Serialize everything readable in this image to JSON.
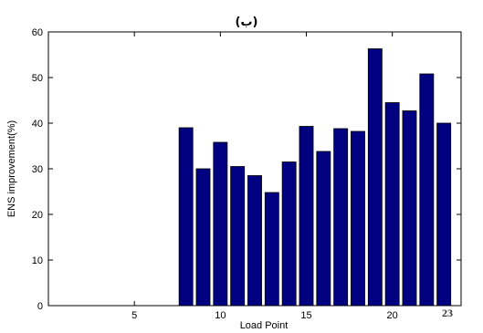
{
  "chart_data": {
    "type": "bar",
    "subtitle": "(ب)",
    "xlabel": "Load Point",
    "ylabel": "ENS improvement(%)",
    "xlim": [
      0,
      24
    ],
    "ylim": [
      0,
      60
    ],
    "x_ticks": [
      "5",
      "10",
      "15",
      "20"
    ],
    "y_ticks": [
      "0",
      "10",
      "20",
      "30",
      "40",
      "50",
      "60"
    ],
    "extra_x_label": "23",
    "bar_color": "#000080",
    "categories": [
      8,
      9,
      10,
      11,
      12,
      13,
      14,
      15,
      16,
      17,
      18,
      19,
      20,
      21,
      22,
      23
    ],
    "values": [
      39,
      30,
      35.8,
      30.5,
      28.5,
      24.8,
      31.5,
      39.3,
      33.8,
      38.8,
      38.2,
      56.3,
      44.5,
      42.7,
      50.8,
      40
    ]
  }
}
